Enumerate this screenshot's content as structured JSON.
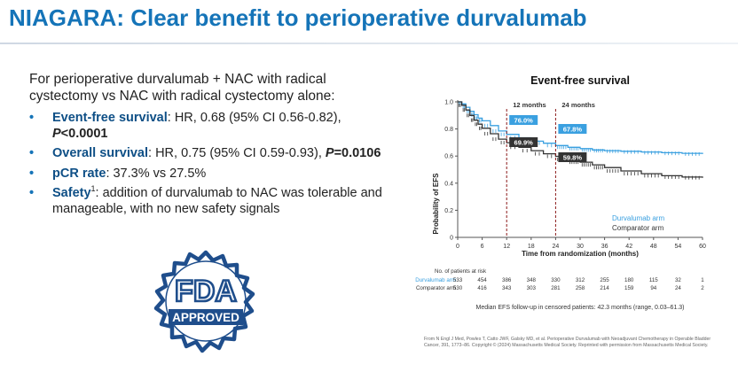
{
  "slide": {
    "title": "NIAGARA: Clear benefit to perioperative durvalumab",
    "intro": "For perioperative durvalumab + NAC with radical cystectomy vs NAC with radical cystectomy alone:",
    "bullets": [
      {
        "key": "Event-free survival",
        "text": ": HR, 0.68 (95% CI 0.56-0.82), ",
        "p": "P",
        "pval": "<0.0001"
      },
      {
        "key": "Overall survival",
        "text": ": HR, 0.75 (95% CI 0.59-0.93), ",
        "p": "P",
        "pval": "=0.0106"
      },
      {
        "key": "pCR rate",
        "text": ": 37.3% vs 27.5%"
      },
      {
        "key": "Safety",
        "sup": "1",
        "text": ": addition of durvalumab to NAC was tolerable and manageable, with no new safety signals"
      }
    ],
    "badge": {
      "top": "FDA",
      "bottom": "APPROVED",
      "color": "#1f4e8c"
    },
    "colors": {
      "title": "#1574b8",
      "durvalumab": "#3aa0e0",
      "comparator": "#333333",
      "dashed": "#8b1a1a"
    },
    "credit": "From N Engl J Med, Powles T, Catto JWF, Galsky MD, et al. Perioperative Durvalumab with Neoadjuvant Chemotherapy in Operable Bladder Cancer, 391, 1773–86. Copyright © (2024) Massachusetts Medical Society. Reprinted with permission from Massachusetts Medical Society."
  },
  "chart_data": {
    "type": "line",
    "title": "Event-free survival",
    "xlabel": "Time from randomization (months)",
    "ylabel": "Probability of EFS",
    "xlim": [
      0,
      60
    ],
    "ylim": [
      0,
      1.0
    ],
    "x_ticks": [
      0,
      6,
      12,
      18,
      24,
      30,
      36,
      42,
      48,
      54,
      60
    ],
    "y_ticks": [
      0,
      0.2,
      0.4,
      0.6,
      0.8,
      1.0
    ],
    "y_tick_labels": [
      "0",
      "0.2",
      "0.4",
      "0.6",
      "0.8",
      "1.0"
    ],
    "series": [
      {
        "name": "Durvalumab arm",
        "color": "#3aa0e0",
        "x": [
          0,
          1,
          2,
          3,
          4,
          5,
          6,
          8,
          10,
          12,
          15,
          18,
          21,
          24,
          27,
          30,
          33,
          36,
          40,
          45,
          50,
          55,
          60
        ],
        "y": [
          1.0,
          0.985,
          0.96,
          0.93,
          0.905,
          0.88,
          0.86,
          0.825,
          0.785,
          0.76,
          0.735,
          0.71,
          0.695,
          0.678,
          0.665,
          0.655,
          0.645,
          0.64,
          0.635,
          0.63,
          0.625,
          0.62,
          0.615
        ]
      },
      {
        "name": "Comparator arm",
        "color": "#333333",
        "x": [
          0,
          1,
          2,
          3,
          4,
          5,
          6,
          8,
          10,
          12,
          15,
          18,
          21,
          24,
          27,
          30,
          33,
          36,
          40,
          45,
          50,
          55,
          60
        ],
        "y": [
          1.0,
          0.975,
          0.94,
          0.9,
          0.865,
          0.835,
          0.805,
          0.765,
          0.725,
          0.699,
          0.665,
          0.64,
          0.617,
          0.598,
          0.575,
          0.555,
          0.535,
          0.515,
          0.49,
          0.47,
          0.455,
          0.445,
          0.44
        ]
      }
    ],
    "annotations": [
      {
        "label": "12 months",
        "x": 12,
        "durvalumab": "76.0%",
        "comparator": "69.9%"
      },
      {
        "label": "24 months",
        "x": 24,
        "durvalumab": "67.8%",
        "comparator": "59.8%"
      }
    ],
    "risk_table": {
      "title": "No. of patients at risk",
      "rows": [
        {
          "name": "Durvalumab arm",
          "values": [
            "533",
            "454",
            "386",
            "348",
            "330",
            "312",
            "255",
            "180",
            "115",
            "32",
            "1"
          ]
        },
        {
          "name": "Comparator arm",
          "values": [
            "530",
            "416",
            "343",
            "303",
            "281",
            "258",
            "214",
            "159",
            "94",
            "24",
            "2"
          ]
        }
      ]
    },
    "footnote": "Median EFS follow-up in censored patients: 42.3 months (range, 0.03–61.3)"
  }
}
